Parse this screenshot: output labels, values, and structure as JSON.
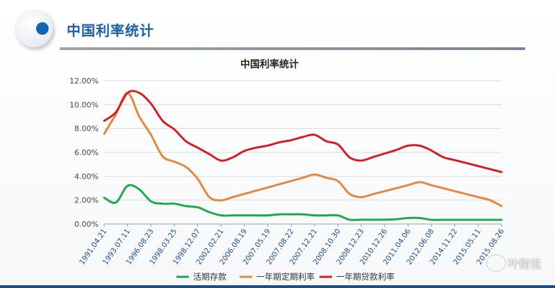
{
  "header": {
    "title": "中国利率统计"
  },
  "watermark": {
    "text": "叶衡说"
  },
  "chart_data": {
    "type": "line",
    "title": "中国利率统计",
    "ylim": [
      0,
      12
    ],
    "y_ticks": [
      "0.00%",
      "2.00%",
      "4.00%",
      "6.00%",
      "8.00%",
      "10.00%",
      "12.00%"
    ],
    "x_tick_labels": [
      "1991.04.21",
      "1993.07.11",
      "1996.08.23",
      "1998.03.25",
      "1998.12.07",
      "2002.02.21",
      "2006.08.19",
      "2007.05.19",
      "2007.08.22",
      "2007.12.21",
      "2008.10.30",
      "2008.12.23",
      "2010.12.26",
      "2011.04.06",
      "2012.06.08",
      "2014.11.22",
      "2015.05.11",
      "2015.08.26"
    ],
    "x": [
      0,
      0.5,
      1,
      1.5,
      2,
      2.5,
      3,
      3.5,
      4,
      4.5,
      5,
      5.5,
      6,
      6.5,
      7,
      7.5,
      8,
      8.5,
      9,
      9.5,
      10,
      10.5,
      11,
      11.5,
      12,
      12.5,
      13,
      13.5,
      14,
      14.5,
      15,
      15.5,
      16,
      16.5,
      17
    ],
    "grid": true,
    "legend_position": "bottom",
    "series": [
      {
        "name": "活期存款",
        "color": "#1aaa4c",
        "values": [
          2.2,
          1.8,
          3.2,
          2.9,
          1.9,
          1.7,
          1.7,
          1.5,
          1.4,
          0.99,
          0.72,
          0.72,
          0.72,
          0.72,
          0.72,
          0.81,
          0.81,
          0.81,
          0.72,
          0.72,
          0.72,
          0.36,
          0.36,
          0.36,
          0.36,
          0.4,
          0.5,
          0.5,
          0.35,
          0.35,
          0.35,
          0.35,
          0.35,
          0.35,
          0.35
        ]
      },
      {
        "name": "一年期定期利率",
        "color": "#e8873c",
        "values": [
          7.56,
          9.18,
          10.98,
          9.0,
          7.47,
          5.67,
          5.22,
          4.77,
          3.78,
          2.25,
          1.98,
          2.25,
          2.52,
          2.79,
          3.06,
          3.33,
          3.6,
          3.87,
          4.14,
          3.87,
          3.6,
          2.52,
          2.25,
          2.5,
          2.75,
          3.0,
          3.25,
          3.5,
          3.25,
          3.0,
          2.75,
          2.5,
          2.25,
          2.0,
          1.5
        ]
      },
      {
        "name": "一年期贷款利率",
        "color": "#d71d20",
        "values": [
          8.64,
          9.36,
          10.98,
          10.98,
          10.08,
          8.64,
          7.92,
          6.93,
          6.39,
          5.85,
          5.31,
          5.58,
          6.12,
          6.39,
          6.57,
          6.84,
          7.02,
          7.29,
          7.47,
          6.93,
          6.66,
          5.58,
          5.31,
          5.6,
          5.9,
          6.2,
          6.56,
          6.56,
          6.15,
          5.6,
          5.35,
          5.1,
          4.85,
          4.6,
          4.35
        ]
      }
    ]
  }
}
